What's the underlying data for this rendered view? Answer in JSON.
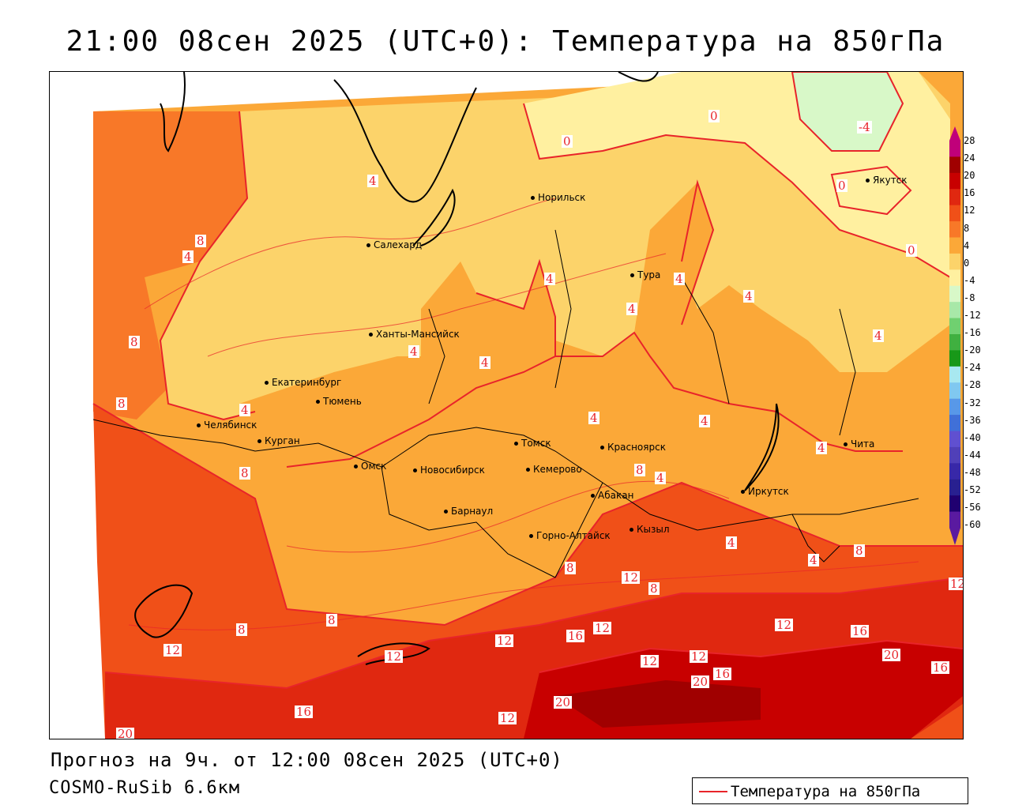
{
  "title": "21:00 08сен 2025 (UTC+0): Температура на 850гПа",
  "footer": {
    "forecast": "Прогноз на 9ч. от 12:00 08сен 2025 (UTC+0)",
    "model": "COSMO-RuSib 6.6км"
  },
  "legend": {
    "label": "Температура на 850гПа",
    "line_color": "#e8242a"
  },
  "colorbar": {
    "ticks": [
      "28",
      "24",
      "20",
      "16",
      "12",
      "8",
      "4",
      "0",
      "-4",
      "-8",
      "-12",
      "-16",
      "-20",
      "-24",
      "-28",
      "-32",
      "-36",
      "-40",
      "-44",
      "-48",
      "-52",
      "-56",
      "-60"
    ],
    "colors": [
      "#c0007a",
      "#a00000",
      "#c80000",
      "#e02810",
      "#f05018",
      "#f87828",
      "#fba838",
      "#fcd36a",
      "#fff0a0",
      "#d8f8c8",
      "#a8e8a8",
      "#70d070",
      "#40b040",
      "#189818",
      "#a8e8f0",
      "#80c8f0",
      "#5898e8",
      "#4070d8",
      "#6050d0",
      "#5040b8",
      "#3828a8",
      "#282090",
      "#200070",
      "#5a1aa0"
    ]
  },
  "cities": [
    {
      "name": "Норильск"
    },
    {
      "name": "Якутск"
    },
    {
      "name": "Салехард"
    },
    {
      "name": "Тура"
    },
    {
      "name": "Ханты-Мансийск"
    },
    {
      "name": "Екатеринбург"
    },
    {
      "name": "Тюмень"
    },
    {
      "name": "Челябинск"
    },
    {
      "name": "Курган"
    },
    {
      "name": "Томск"
    },
    {
      "name": "Красноярск"
    },
    {
      "name": "Омск"
    },
    {
      "name": "Новосибирск"
    },
    {
      "name": "Кемерово"
    },
    {
      "name": "Абакан"
    },
    {
      "name": "Барнаул"
    },
    {
      "name": "Горно-Алтайск"
    },
    {
      "name": "Кызыл"
    },
    {
      "name": "Иркутск"
    },
    {
      "name": "Чита"
    }
  ],
  "contour_labels": [
    "0",
    "-4",
    "0",
    "0",
    "0",
    "4",
    "8",
    "4",
    "8",
    "8",
    "4",
    "4",
    "4",
    "4",
    "4",
    "4",
    "4",
    "4",
    "4",
    "4",
    "4",
    "4",
    "8",
    "8",
    "8",
    "4",
    "4",
    "8",
    "8",
    "12",
    "12",
    "12",
    "16",
    "12",
    "12",
    "16",
    "20",
    "16",
    "20",
    "12",
    "16",
    "12",
    "12",
    "16",
    "12",
    "20",
    "12",
    "8",
    "8",
    "20"
  ]
}
